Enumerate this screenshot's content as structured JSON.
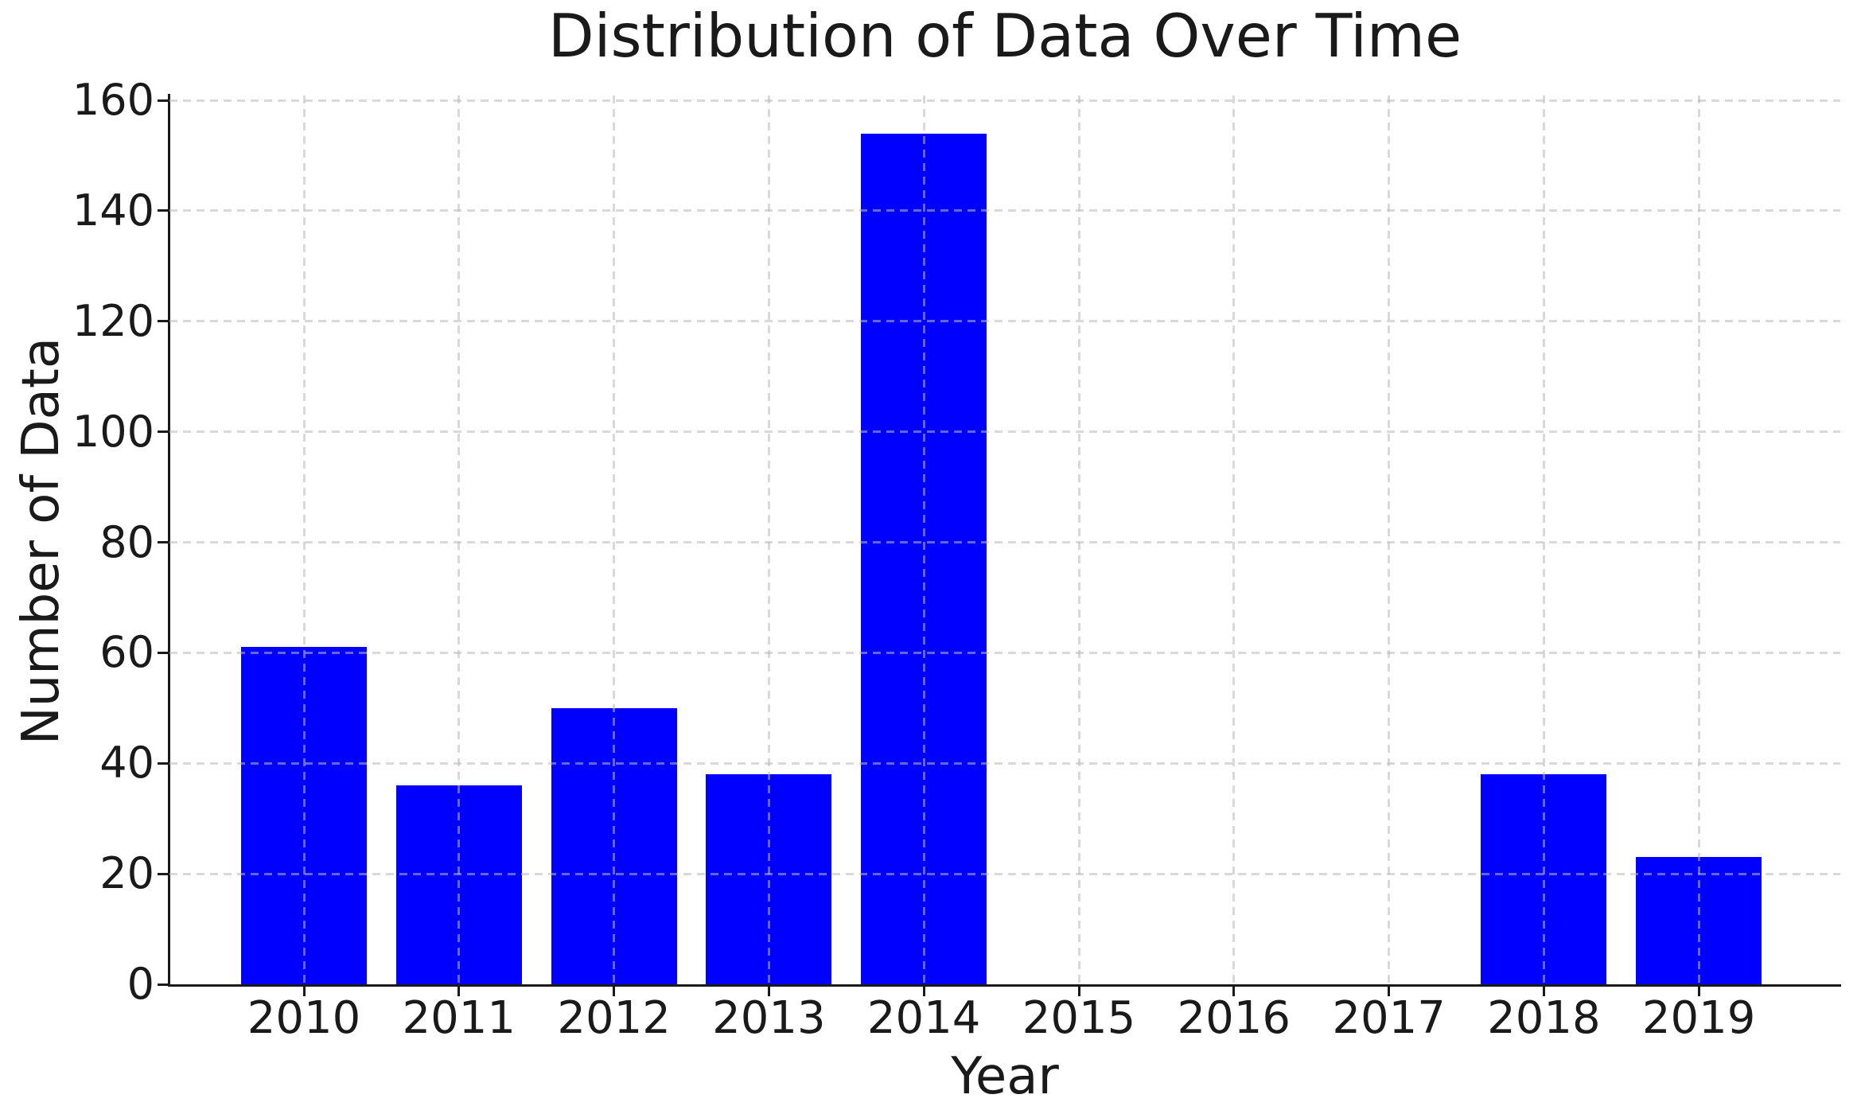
{
  "chart_data": {
    "type": "bar",
    "title": "Distribution of Data Over Time",
    "xlabel": "Year",
    "ylabel": "Number of Data",
    "categories": [
      "2010",
      "2011",
      "2012",
      "2013",
      "2014",
      "2015",
      "2016",
      "2017",
      "2018",
      "2019"
    ],
    "values": [
      61,
      36,
      50,
      38,
      154,
      0,
      0,
      0,
      38,
      23
    ],
    "ylim": [
      0,
      160
    ],
    "yticks": [
      0,
      20,
      40,
      60,
      80,
      100,
      120,
      140,
      160
    ],
    "grid": "dashed both axes, drawn over bars",
    "legend": "none",
    "colors": {
      "bar": "#0000ff",
      "grid": "rgba(186,186,186,0.55)",
      "axis": "#1a1a1a",
      "text": "#1a1a1a",
      "background": "#ffffff"
    }
  }
}
